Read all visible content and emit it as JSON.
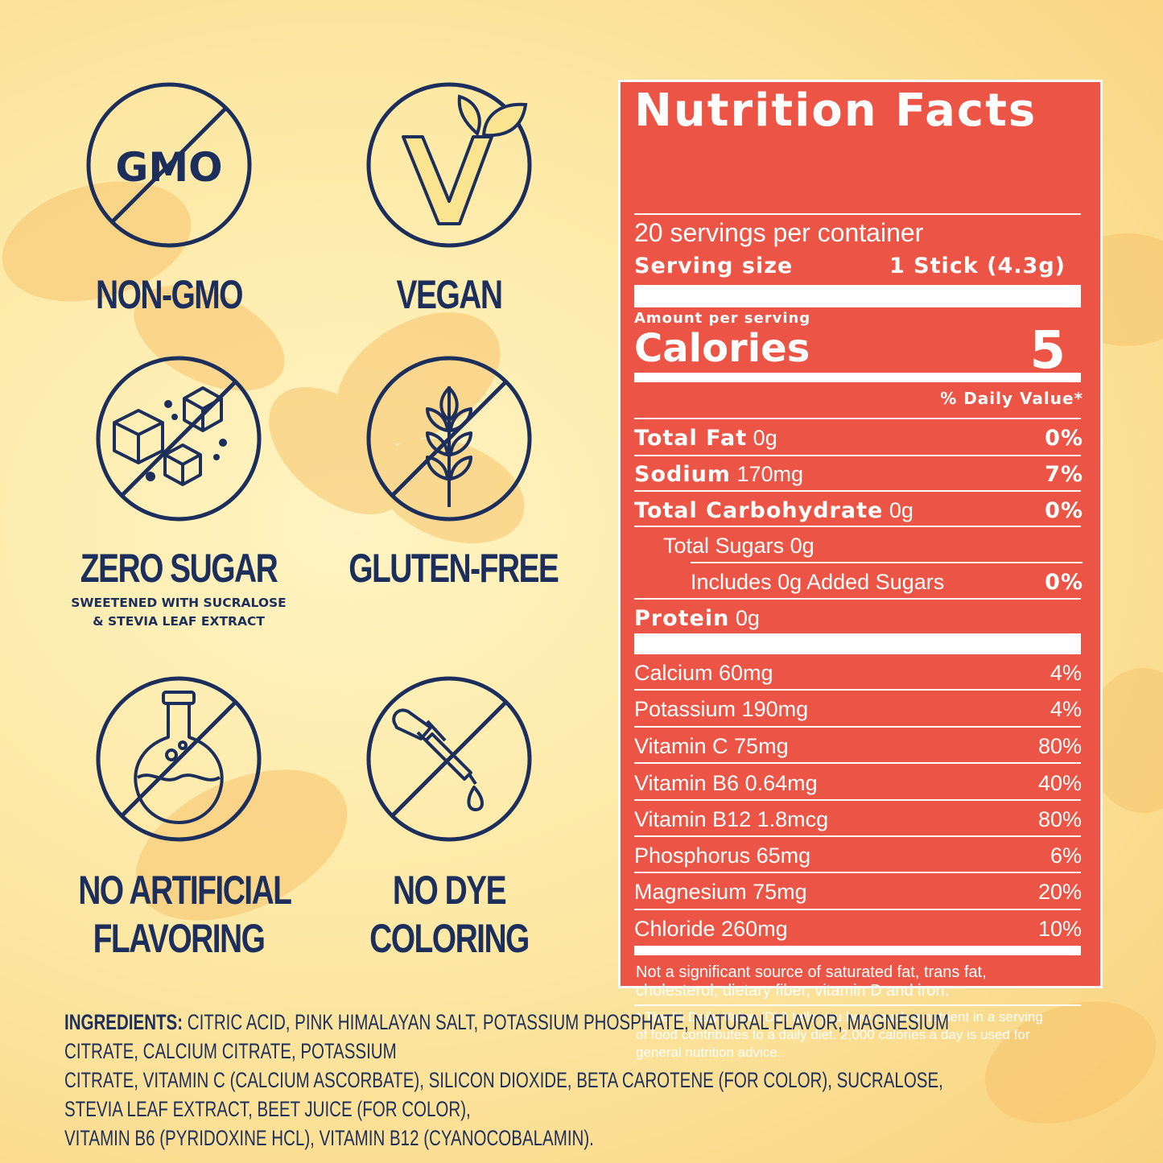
{
  "colors": {
    "navy": "#1c2f5c",
    "panel": "#ec5545",
    "background": "#fde9a6"
  },
  "badges": [
    {
      "icon": "no-gmo-icon",
      "label": "NON-GMO",
      "circle_text": "GMO"
    },
    {
      "icon": "vegan-icon",
      "label": "VEGAN"
    },
    {
      "icon": "sugar-cubes-icon",
      "label": "ZERO SUGAR",
      "sub1": "SWEETENED WITH SUCRALOSE",
      "sub2": "& STEVIA LEAF EXTRACT"
    },
    {
      "icon": "wheat-icon",
      "label": "GLUTEN-FREE"
    },
    {
      "icon": "flask-icon",
      "label1": "NO ARTIFICIAL",
      "label2": "FLAVORING"
    },
    {
      "icon": "dropper-icon",
      "label1": "NO DYE",
      "label2": "COLORING"
    }
  ],
  "nutrition": {
    "title": "Nutrition Facts",
    "servings": "20 servings per container",
    "serving_size_label": "Serving size",
    "serving_size_value": "1 Stick (4.3g)",
    "amount_per_serving": "Amount per serving",
    "calories_label": "Calories",
    "calories_value": "5",
    "dv_header": "% Daily Value*",
    "rows": [
      {
        "name": "Total Fat",
        "amount": "0g",
        "dv": "0%"
      },
      {
        "name": "Sodium",
        "amount": "170mg",
        "dv": "7%"
      },
      {
        "name": "Total Carbohydrate",
        "amount": "0g",
        "dv": "0%"
      },
      {
        "name": "Total Sugars 0g",
        "amount": "",
        "dv": ""
      },
      {
        "name": "Includes 0g Added Sugars",
        "amount": "",
        "dv": "0%"
      },
      {
        "name": "Protein",
        "amount": "0g",
        "dv": ""
      }
    ],
    "minerals": [
      {
        "name": "Calcium 60mg",
        "dv": "4%"
      },
      {
        "name": "Potassium 190mg",
        "dv": "4%"
      },
      {
        "name": "Vitamin C 75mg",
        "dv": "80%"
      },
      {
        "name": "Vitamin B6 0.64mg",
        "dv": "40%"
      },
      {
        "name": "Vitamin B12 1.8mcg",
        "dv": "80%"
      },
      {
        "name": "Phosphorus 65mg",
        "dv": "6%"
      },
      {
        "name": "Magnesium 75mg",
        "dv": "20%"
      },
      {
        "name": "Chloride 260mg",
        "dv": "10%"
      }
    ],
    "footnote1_line1": "Not a significant source of saturated fat, trans fat,",
    "footnote1_line2": "cholesterol, dietary fiber, vitamin D and iron.",
    "footnote2_line1": "* The % Daily Value (DV) tells you how much a nutrient in a serving",
    "footnote2_line2": "of food contributes to a daily diet. 2,000 calories a day is used for",
    "footnote2_line3": "general nutrition advice."
  },
  "ingredients": {
    "heading": "INGREDIENTS:",
    "line1": " CITRIC ACID, PINK HIMALAYAN SALT, POTASSIUM PHOSPHATE, NATURAL FLAVOR, MAGNESIUM CITRATE, CALCIUM CITRATE, POTASSIUM",
    "line2": "CITRATE, VITAMIN C (CALCIUM ASCORBATE), SILICON DIOXIDE, BETA CAROTENE (FOR COLOR), SUCRALOSE, STEVIA LEAF EXTRACT, BEET JUICE (FOR COLOR),",
    "line3": "VITAMIN B6 (PYRIDOXINE HCL), VITAMIN B12 (CYANOCOBALAMIN)."
  }
}
